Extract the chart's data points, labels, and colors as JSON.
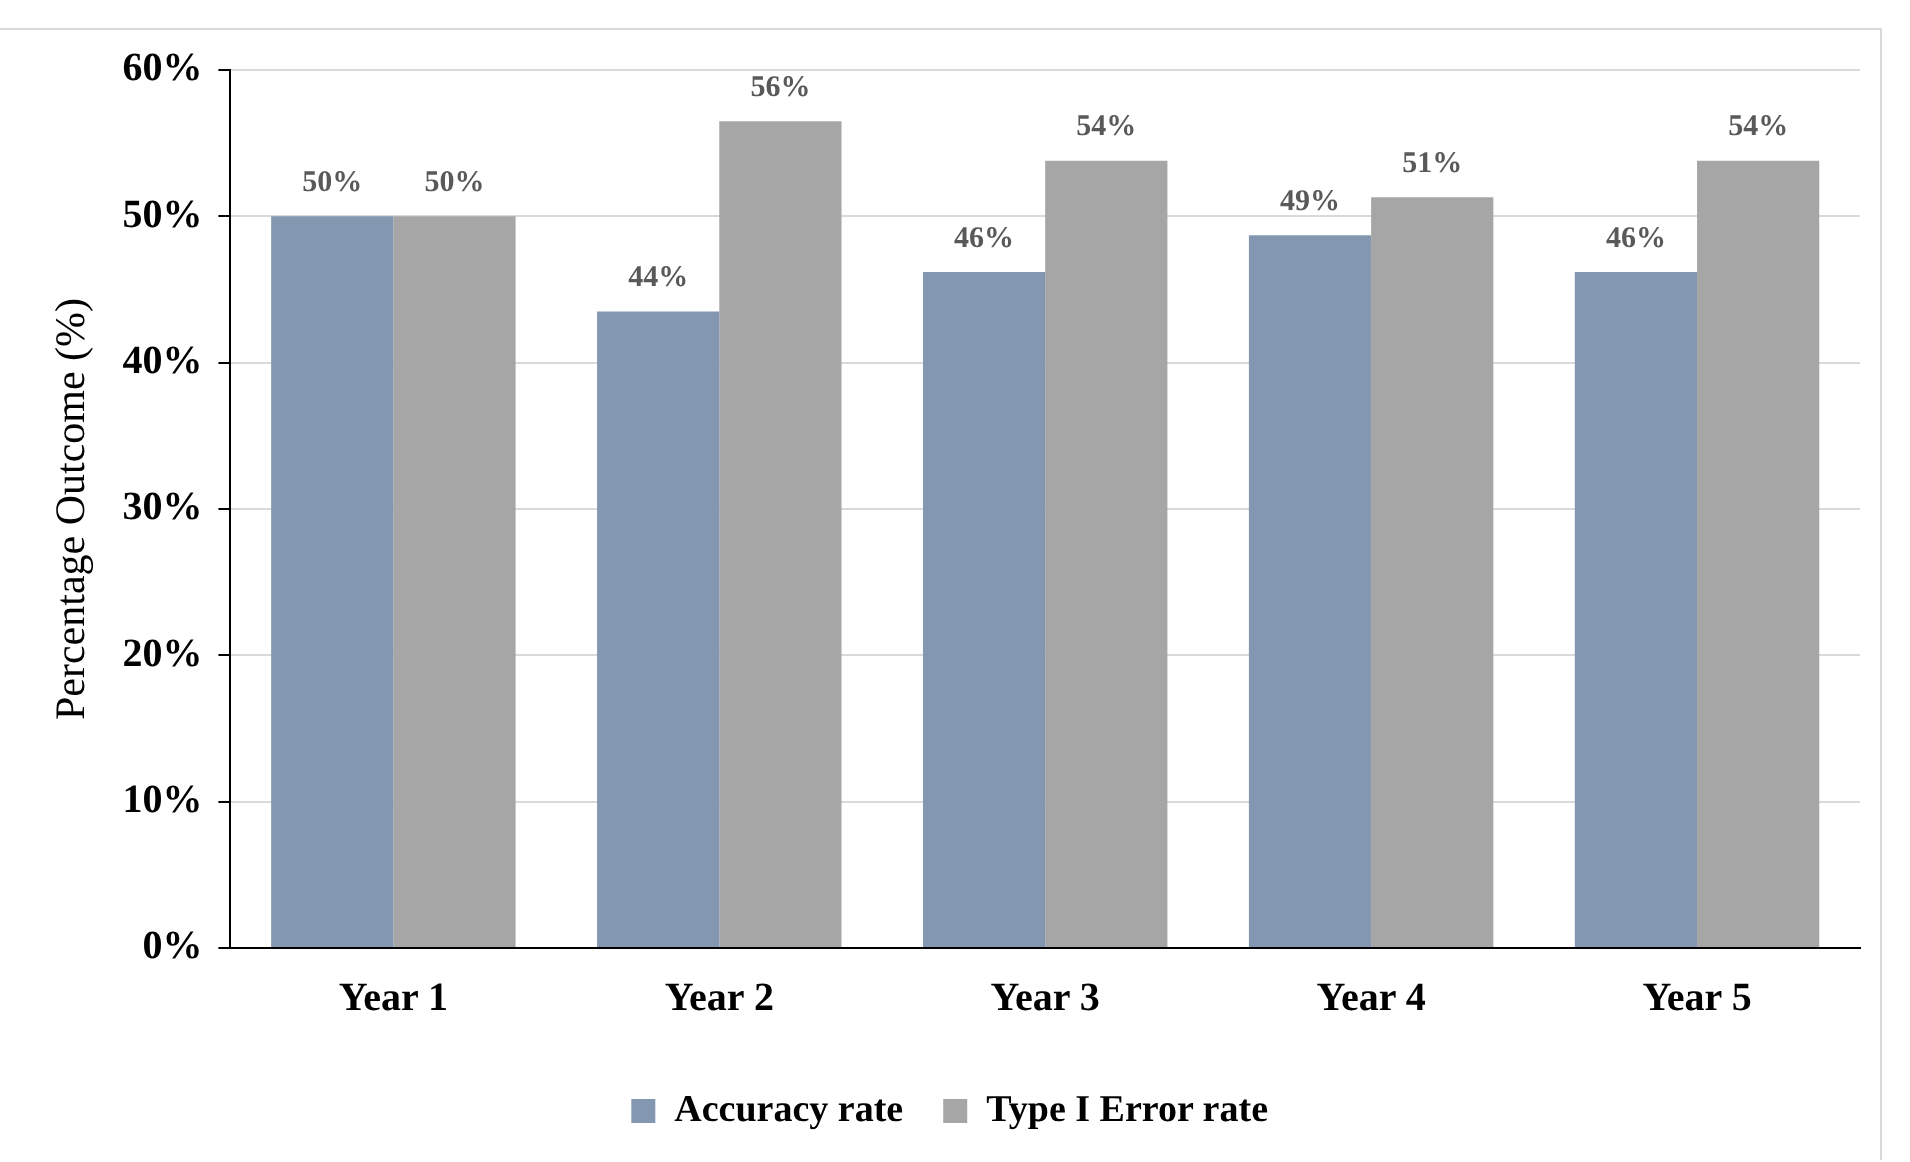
{
  "chart_data": {
    "type": "bar",
    "ylabel": "Percentage Outcome (%)",
    "categories": [
      "Year 1",
      "Year 2",
      "Year 3",
      "Year 4",
      "Year 5"
    ],
    "series": [
      {
        "name": "Accuracy rate",
        "color": "#8497b0",
        "values": [
          50,
          43.5,
          46.2,
          48.7,
          46.2
        ],
        "value_labels": [
          "50%",
          "44%",
          "46%",
          "49%",
          "46%"
        ]
      },
      {
        "name": "Type I Error rate",
        "color": "#a6a6a6",
        "values": [
          50,
          56.5,
          53.8,
          51.3,
          53.8
        ],
        "value_labels": [
          "50%",
          "56%",
          "54%",
          "51%",
          "54%"
        ]
      }
    ],
    "ylim": [
      0,
      60
    ],
    "yticks": [
      {
        "value": 0,
        "label": "0%"
      },
      {
        "value": 10,
        "label": "10%"
      },
      {
        "value": 20,
        "label": "20%"
      },
      {
        "value": 30,
        "label": "30%"
      },
      {
        "value": 40,
        "label": "40%"
      },
      {
        "value": 50,
        "label": "50%"
      },
      {
        "value": 60,
        "label": "60%"
      }
    ],
    "grid": "y",
    "legend": "bottom"
  }
}
